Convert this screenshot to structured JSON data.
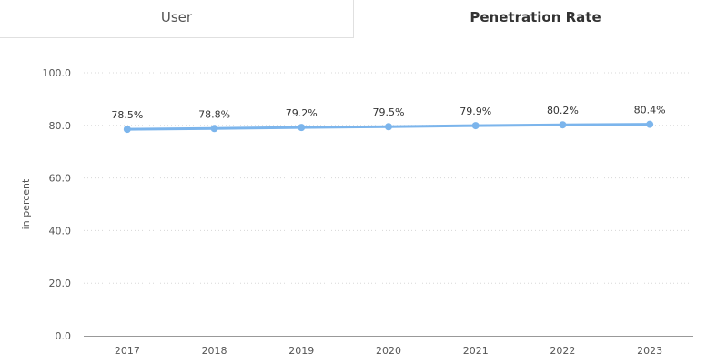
{
  "tabs": [
    {
      "label": "User",
      "active": false
    },
    {
      "label": "Penetration Rate",
      "active": true
    }
  ],
  "colors": {
    "line": "#7cb5ec",
    "grid": "#d8d8d8",
    "axis": "#999999",
    "text": "#333333",
    "tick_text": "#555555"
  },
  "chart_data": {
    "type": "line",
    "title": "Penetration Rate",
    "xlabel": "",
    "ylabel": "in percent",
    "categories": [
      "2017",
      "2018",
      "2019",
      "2020",
      "2021",
      "2022",
      "2023"
    ],
    "series": [
      {
        "values": [
          78.5,
          78.8,
          79.2,
          79.5,
          79.9,
          80.2,
          80.4
        ],
        "data_labels": [
          "78.5%",
          "78.8%",
          "79.2%",
          "79.5%",
          "79.9%",
          "80.2%",
          "80.4%"
        ]
      }
    ],
    "yticks": [
      "0.0",
      "20.0",
      "40.0",
      "60.0",
      "80.0",
      "100.0"
    ],
    "ylim": [
      0,
      100
    ],
    "grid": "horizontal dotted",
    "legend": "none"
  }
}
